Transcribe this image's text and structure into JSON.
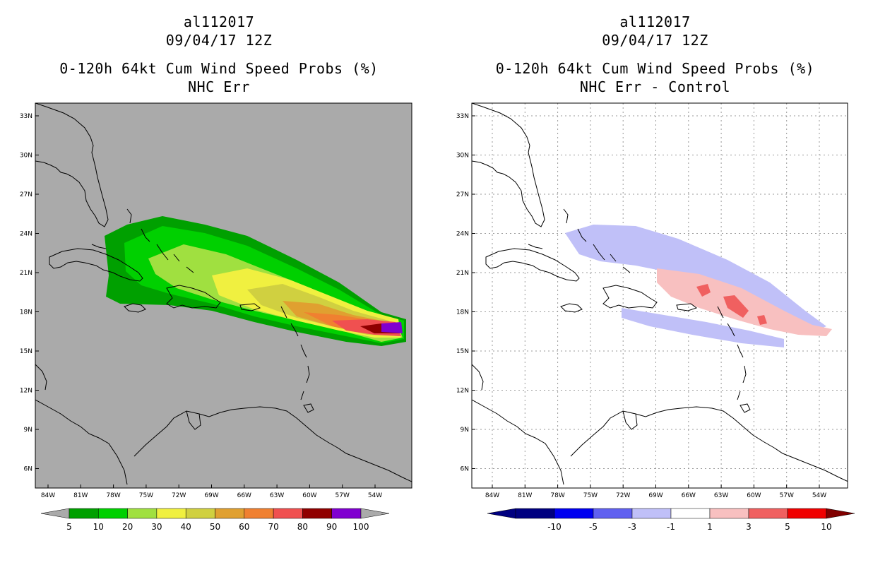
{
  "left": {
    "storm_id": "al112017",
    "datetime": "09/04/17 12Z",
    "product": "0-120h 64kt Cum Wind Speed Probs (%)",
    "subtitle": "NHC Err",
    "colorbar": {
      "colors": [
        "#00a000",
        "#00d000",
        "#a0e040",
        "#f0f040",
        "#d0d040",
        "#e0a030",
        "#f08030",
        "#f05050",
        "#900000",
        "#8000d0"
      ],
      "labels": [
        "5",
        "10",
        "20",
        "30",
        "40",
        "50",
        "60",
        "70",
        "80",
        "90",
        "100"
      ]
    }
  },
  "right": {
    "storm_id": "al112017",
    "datetime": "09/04/17 12Z",
    "product": "0-120h 64kt Cum Wind Speed Probs (%)",
    "subtitle": "NHC Err - Control",
    "colorbar": {
      "colors": [
        "#000080",
        "#0000f0",
        "#6060f0",
        "#c0c0f8",
        "#ffffff",
        "#f8c0c0",
        "#f06060",
        "#f00000"
      ],
      "labels": [
        "-10",
        "-5",
        "-3",
        "-1",
        "1",
        "3",
        "5",
        "10"
      ]
    }
  },
  "axes": {
    "lat_labels": [
      "33N",
      "30N",
      "27N",
      "24N",
      "21N",
      "18N",
      "15N",
      "12N",
      "9N",
      "6N"
    ],
    "lon_labels": [
      "84W",
      "81W",
      "78W",
      "75W",
      "72W",
      "69W",
      "66W",
      "63W",
      "60W",
      "57W",
      "54W"
    ]
  }
}
